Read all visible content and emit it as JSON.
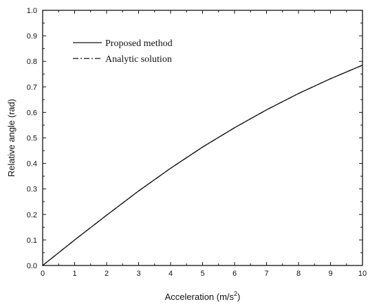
{
  "chart_data": {
    "type": "line",
    "title": "",
    "xlabel": "Acceleration (m/s",
    "xlabel_sup": "2",
    "xlabel_close": ")",
    "ylabel": "Relative angle (rad)",
    "xlim": [
      0,
      10
    ],
    "ylim": [
      0,
      1.0
    ],
    "x_ticks": [
      0,
      1,
      2,
      3,
      4,
      5,
      6,
      7,
      8,
      9,
      10
    ],
    "x_tick_labels": [
      "0",
      "1",
      "2",
      "3",
      "4",
      "5",
      "6",
      "7",
      "8",
      "9",
      "10"
    ],
    "y_ticks": [
      0,
      0.1,
      0.2,
      0.3,
      0.4,
      0.5,
      0.6,
      0.7,
      0.8,
      0.9,
      1.0
    ],
    "y_tick_labels": [
      "0.0",
      "0.1",
      "0.2",
      "0.3",
      "0.4",
      "0.5",
      "0.6",
      "0.7",
      "0.8",
      "0.9",
      "1.0"
    ],
    "grid": false,
    "legend_position": "top-left",
    "series": [
      {
        "name": "Proposed method",
        "style": "solid",
        "x": [
          0,
          1,
          2,
          3,
          4,
          5,
          6,
          7,
          8,
          9,
          10
        ],
        "y": [
          0,
          0.1,
          0.197,
          0.292,
          0.381,
          0.464,
          0.54,
          0.61,
          0.674,
          0.732,
          0.785
        ]
      },
      {
        "name": "Analytic solution",
        "style": "dash-dot",
        "x": [
          0,
          1,
          2,
          3,
          4,
          5,
          6,
          7,
          8,
          9,
          10
        ],
        "y": [
          0,
          0.1,
          0.197,
          0.292,
          0.381,
          0.464,
          0.54,
          0.61,
          0.674,
          0.732,
          0.785
        ]
      }
    ]
  }
}
